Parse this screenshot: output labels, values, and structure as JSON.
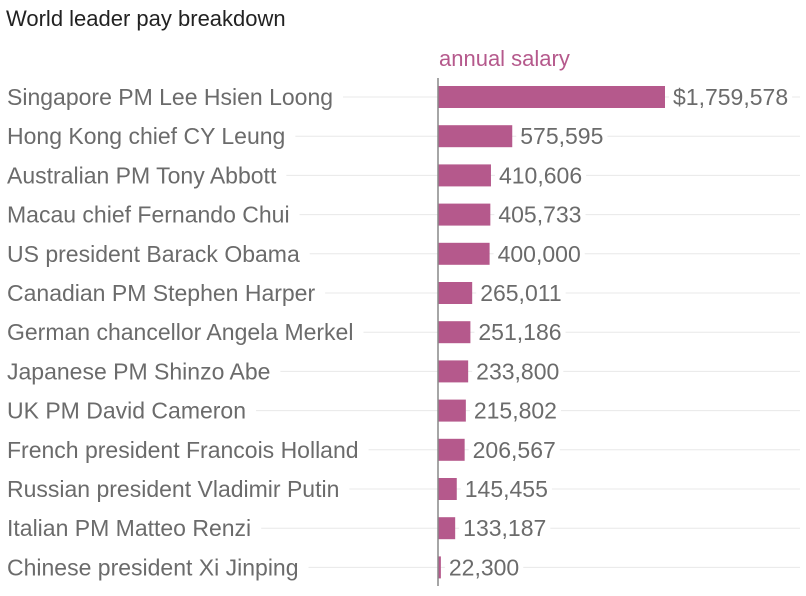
{
  "colors": {
    "bar": "#b5598c",
    "series_label": "#b5598c",
    "axis": "#888888",
    "gridline": "#e8e8e8"
  },
  "chart_data": {
    "type": "bar",
    "orientation": "horizontal",
    "title": "World leader pay breakdown",
    "series_name": "annual salary",
    "categories": [
      "Singapore PM Lee Hsien Loong",
      "Hong Kong chief CY Leung",
      "Australian PM Tony Abbott",
      "Macau chief Fernando Chui",
      "US president Barack Obama",
      "Canadian PM Stephen Harper",
      "German chancellor Angela Merkel",
      "Japanese PM Shinzo Abe",
      "UK PM David Cameron",
      "French president Francois Holland",
      "Russian president Vladimir Putin",
      "Italian PM Matteo Renzi",
      "Chinese president Xi Jinping"
    ],
    "values": [
      1759578,
      575595,
      410606,
      405733,
      400000,
      265011,
      251186,
      233800,
      215802,
      206567,
      145455,
      133187,
      22300
    ],
    "value_labels": [
      "$1,759,578",
      "575,595",
      "410,606",
      "405,733",
      "400,000",
      "265,011",
      "251,186",
      "233,800",
      "215,802",
      "206,567",
      "145,455",
      "133,187",
      "22,300"
    ],
    "grid": true,
    "legend": "top"
  }
}
